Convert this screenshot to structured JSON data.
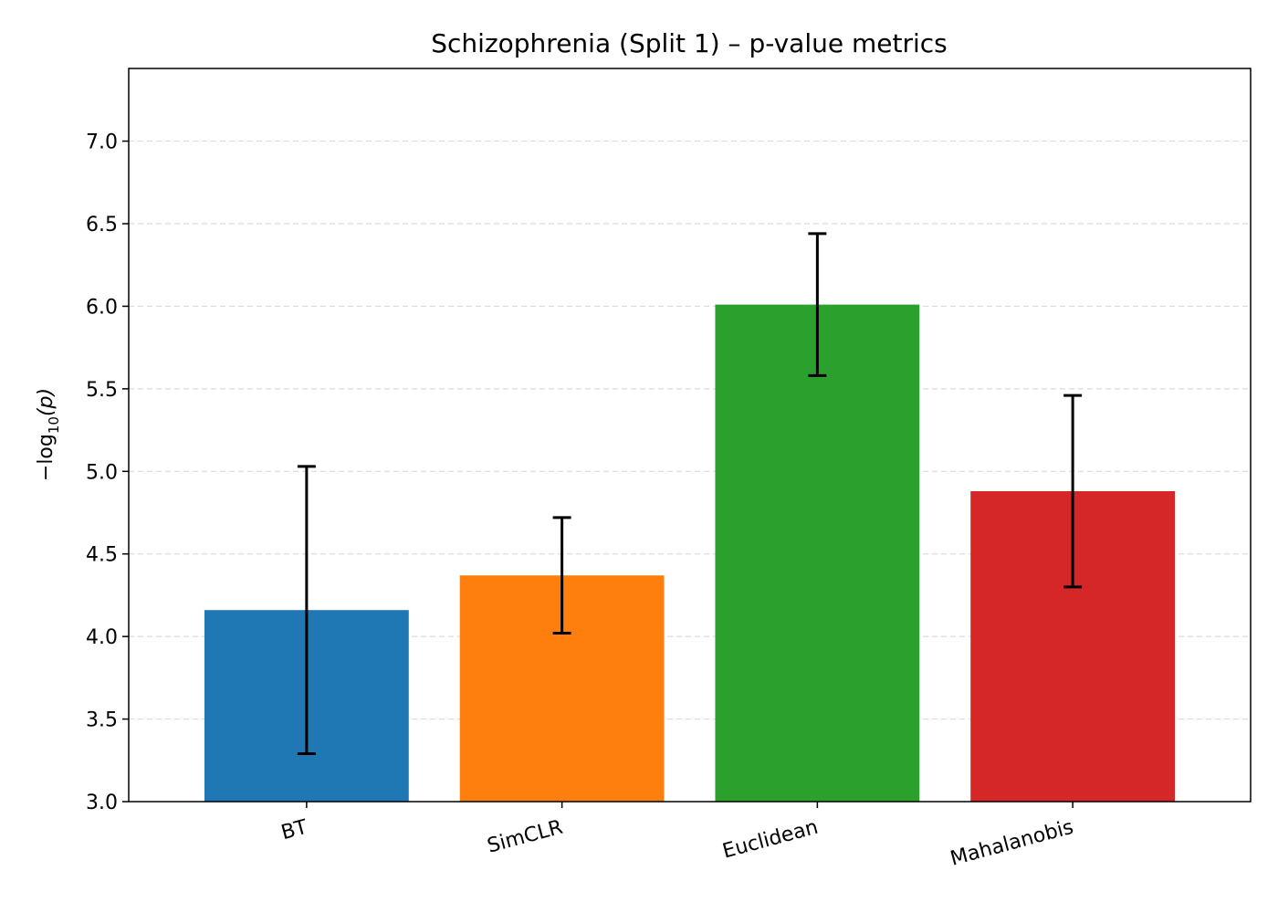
{
  "chart_data": {
    "type": "bar",
    "title": "Schizophrenia (Split 1) – p-value metrics",
    "xlabel": "",
    "ylabel": {
      "prefix": "−log",
      "subscript": "10",
      "suffix": "(p)"
    },
    "categories": [
      "BT",
      "SimCLR",
      "Euclidean",
      "Mahalanobis"
    ],
    "values": [
      4.16,
      4.37,
      6.01,
      4.88
    ],
    "errors": [
      0.87,
      0.35,
      0.43,
      0.58
    ],
    "colors": [
      "#1f77b4",
      "#ff7f0e",
      "#2ca02c",
      "#d62728"
    ],
    "ylim": [
      3.0,
      7.44
    ],
    "yticks": [
      "3.0",
      "3.5",
      "4.0",
      "4.5",
      "5.0",
      "5.5",
      "6.0",
      "6.5",
      "7.0"
    ],
    "grid": "y-dashed",
    "legend": "none"
  }
}
